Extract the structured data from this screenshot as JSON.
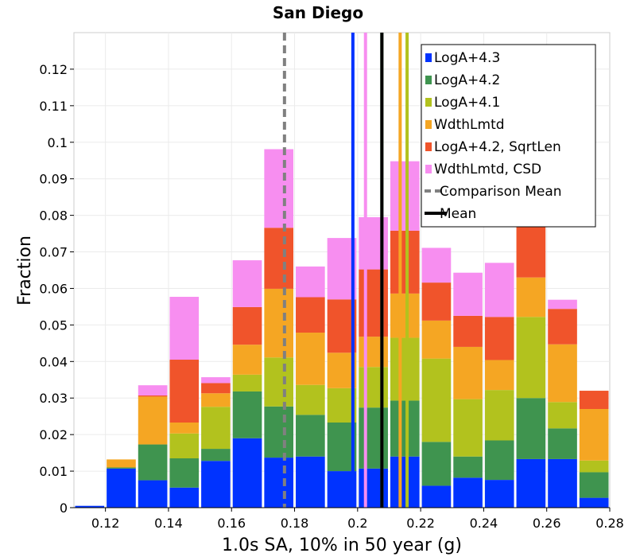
{
  "chart_data": {
    "type": "bar",
    "stacked": true,
    "title": "San Diego",
    "xlabel": "1.0s SA, 10% in 50 year (g)",
    "ylabel": "Fraction",
    "xlim": [
      0.11,
      0.28
    ],
    "ylim": [
      0,
      0.13
    ],
    "xticks": [
      "0.12",
      "0.14",
      "0.16",
      "0.18",
      "0.2",
      "0.22",
      "0.24",
      "0.26",
      "0.28"
    ],
    "yticks": [
      "0",
      "0.01",
      "0.02",
      "0.03",
      "0.04",
      "0.05",
      "0.06",
      "0.07",
      "0.08",
      "0.09",
      "0.1",
      "0.11",
      "0.12"
    ],
    "grid": true,
    "legend_position": "top-right",
    "bin_width": 0.01,
    "bin_centers": [
      0.115,
      0.125,
      0.135,
      0.145,
      0.155,
      0.165,
      0.175,
      0.185,
      0.195,
      0.205,
      0.215,
      0.225,
      0.235,
      0.245,
      0.255,
      0.265,
      0.275
    ],
    "series": [
      {
        "name": "LogA+4.3",
        "color": "#0033ff",
        "values": [
          0.0005,
          0.0107,
          0.0075,
          0.0055,
          0.0128,
          0.019,
          0.0137,
          0.014,
          0.01,
          0.0107,
          0.014,
          0.006,
          0.0082,
          0.0076,
          0.0133,
          0.0133,
          0.0027
        ]
      },
      {
        "name": "LogA+4.2",
        "color": "#3f944f",
        "values": [
          0,
          0.0003,
          0.0098,
          0.008,
          0.0033,
          0.0128,
          0.014,
          0.0114,
          0.0133,
          0.0167,
          0.0153,
          0.012,
          0.0058,
          0.0108,
          0.0167,
          0.0084,
          0.007
        ]
      },
      {
        "name": "LogA+4.1",
        "color": "#b2c21e",
        "values": [
          0,
          0,
          0,
          0.0068,
          0.0115,
          0.0046,
          0.0134,
          0.0082,
          0.0094,
          0.0111,
          0.0172,
          0.0228,
          0.0157,
          0.0138,
          0.0222,
          0.0072,
          0.0032
        ]
      },
      {
        "name": "WdthLmtd",
        "color": "#f5a623",
        "values": [
          0,
          0.0022,
          0.0131,
          0.003,
          0.0037,
          0.0082,
          0.0188,
          0.0143,
          0.0097,
          0.0083,
          0.0121,
          0.0104,
          0.0143,
          0.0082,
          0.0108,
          0.0158,
          0.0141
        ]
      },
      {
        "name": "LogA+4.2, SqrtLen",
        "color": "#f0542b",
        "values": [
          0,
          0,
          0.0003,
          0.0172,
          0.0028,
          0.0103,
          0.0167,
          0.0097,
          0.0146,
          0.0184,
          0.0172,
          0.0104,
          0.0085,
          0.0118,
          0.0227,
          0.0097,
          0.005
        ]
      },
      {
        "name": "WdthLmtd, CSD",
        "color": "#f78ef0",
        "values": [
          0,
          0,
          0.0028,
          0.0172,
          0.0016,
          0.0128,
          0.0215,
          0.0084,
          0.0168,
          0.0143,
          0.019,
          0.0095,
          0.0118,
          0.0148,
          0.0,
          0.0025,
          0.0
        ]
      }
    ],
    "vertical_lines": [
      {
        "name": "LogA+4.3 mean",
        "x": 0.1985,
        "color": "#0033ff"
      },
      {
        "name": "WdthLmtd, CSD mean",
        "x": 0.2025,
        "color": "#f78ef0"
      },
      {
        "name": "WdthLmtd mean",
        "x": 0.2135,
        "color": "#f5a623"
      },
      {
        "name": "LogA+4.1 mean",
        "x": 0.2157,
        "color": "#b2c21e"
      },
      {
        "name": "LogA+4.2 mean",
        "x": 0.2077,
        "color": "#3f944f"
      },
      {
        "name": "Mean",
        "x": 0.2077,
        "color": "#000000"
      },
      {
        "name": "Comparison Mean",
        "x": 0.1768,
        "color": "#808080",
        "dashed": true
      }
    ],
    "legend": [
      {
        "label": "LogA+4.3",
        "color": "#0033ff",
        "kind": "box"
      },
      {
        "label": "LogA+4.2",
        "color": "#3f944f",
        "kind": "box"
      },
      {
        "label": "LogA+4.1",
        "color": "#b2c21e",
        "kind": "box"
      },
      {
        "label": "WdthLmtd",
        "color": "#f5a623",
        "kind": "box"
      },
      {
        "label": "LogA+4.2, SqrtLen",
        "color": "#f0542b",
        "kind": "box"
      },
      {
        "label": "WdthLmtd, CSD",
        "color": "#f78ef0",
        "kind": "box"
      },
      {
        "label": "Comparison Mean",
        "color": "#808080",
        "kind": "dashed"
      },
      {
        "label": "Mean",
        "color": "#000000",
        "kind": "line"
      }
    ]
  }
}
